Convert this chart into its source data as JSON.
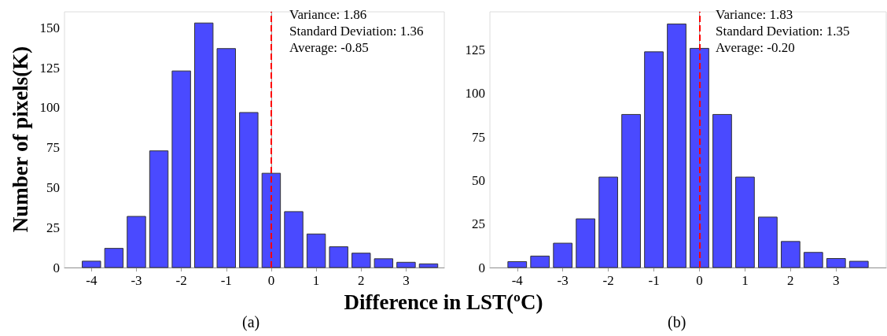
{
  "chart_data": [
    {
      "type": "histogram",
      "xlabel": "Difference in LST(ºC)",
      "ylabel": "Number of pixels(K)",
      "color": "#4a4aff",
      "bins": [
        -4.25,
        -3.75,
        -3.25,
        -2.75,
        -2.25,
        -1.75,
        -1.25,
        -0.75,
        -0.25,
        0.25,
        0.75,
        1.25,
        1.75,
        2.25,
        2.75,
        3.25,
        3.75
      ],
      "values": [
        4,
        12,
        32,
        73,
        123,
        153,
        137,
        97,
        59,
        35,
        21,
        13,
        9,
        5.5,
        3.3,
        2.3
      ],
      "xlim": [
        -4.6,
        3.85
      ],
      "xticks": [
        -4,
        -3,
        -2,
        -1,
        0,
        1,
        2,
        3
      ],
      "ylim": [
        0,
        160
      ],
      "yticks": [
        0,
        25,
        50,
        75,
        100,
        125,
        150
      ],
      "grid": false,
      "ref_lines": [
        {
          "axis": "x",
          "value": 0,
          "color": "#ff0000",
          "line_style": "dashed"
        }
      ],
      "annotations": [
        "Variance: 1.86",
        "Standard Deviation: 1.36",
        "Average: -0.85",
        "(a)"
      ]
    },
    {
      "type": "histogram",
      "color": "#4a4aff",
      "bins": [
        -4.25,
        -3.75,
        -3.25,
        -2.75,
        -2.25,
        -1.75,
        -1.25,
        -0.75,
        -0.25,
        0.25,
        0.75,
        1.25,
        1.75,
        2.25,
        2.75,
        3.25,
        3.75
      ],
      "values": [
        3.4,
        6.6,
        14,
        28,
        52,
        88,
        124,
        140,
        126,
        88,
        52,
        29,
        15,
        8.7,
        5.2,
        3.6
      ],
      "xlim": [
        -4.6,
        4.1
      ],
      "xticks": [
        -4,
        -3,
        -2,
        -1,
        0,
        1,
        2,
        3
      ],
      "ylim": [
        0,
        147
      ],
      "yticks": [
        0,
        25,
        50,
        75,
        100,
        125
      ],
      "grid": false,
      "ref_lines": [
        {
          "axis": "x",
          "value": 0,
          "color": "#ff0000",
          "line_style": "dashed"
        }
      ],
      "annotations": [
        "Variance: 1.83",
        "Standard Deviation: 1.35",
        "Average: -0.20",
        "(b)"
      ]
    }
  ]
}
